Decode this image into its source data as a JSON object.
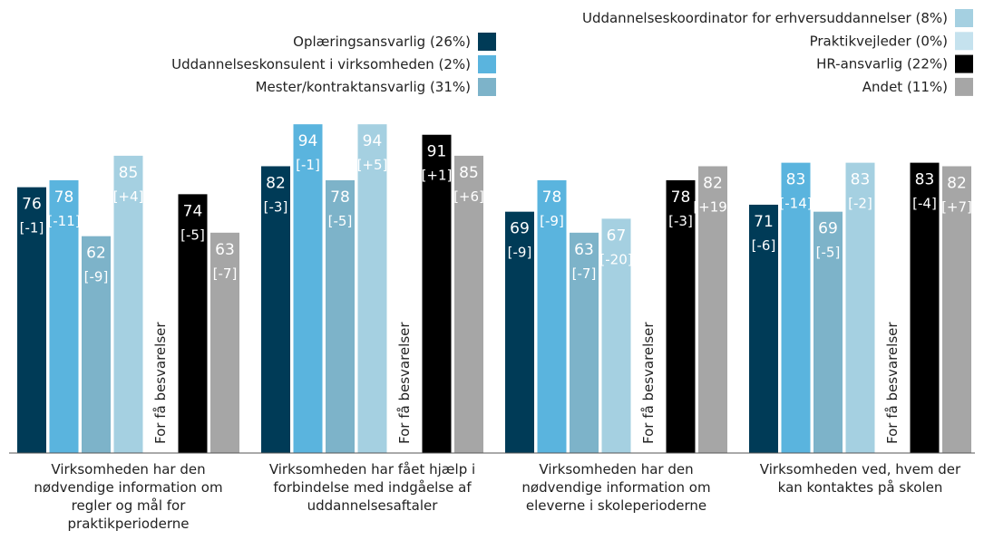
{
  "chart_data": {
    "type": "bar",
    "categories": [
      "Virksomheden har den nødvendige information om regler og mål for praktikperioderne",
      "Virksomheden har fået hjælp i forbindelse med indgåelse af uddannelsesaftaler",
      "Virksomheden har den nødvendige information om eleverne i skoleperioderne",
      "Virksomheden ved, hvem der kan kontaktes på skolen"
    ],
    "ylim": [
      0,
      100
    ],
    "note": "For få besvarelser",
    "series": [
      {
        "name": "Oplæringsansvarlig (26%)",
        "color": "#003b57",
        "values": [
          76,
          82,
          69,
          71
        ],
        "changes": [
          "[-1]",
          "[-3]",
          "[-9]",
          "[-6]"
        ]
      },
      {
        "name": "Uddannelseskonsulent i virksomheden (2%)",
        "color": "#5ab4de",
        "values": [
          78,
          94,
          78,
          83
        ],
        "changes": [
          "[-11]",
          "[-1]",
          "[-9]",
          "[-14]"
        ]
      },
      {
        "name": "Mester/kontraktansvarlig (31%)",
        "color": "#7db3c9",
        "values": [
          62,
          78,
          63,
          69
        ],
        "changes": [
          "[-9]",
          "[-5]",
          "[-7]",
          "[-5]"
        ]
      },
      {
        "name": "Uddannelseskoordinator for erhversuddannelser (8%)",
        "color": "#a5d0e1",
        "values": [
          85,
          94,
          67,
          83
        ],
        "changes": [
          "[+4]",
          "[+5]",
          "[-20]",
          "[-2]"
        ]
      },
      {
        "name": "Praktikvejleder (0%)",
        "color": "#c5e2ee",
        "values": [
          null,
          null,
          null,
          null
        ],
        "changes": [
          null,
          null,
          null,
          null
        ]
      },
      {
        "name": "HR-ansvarlig (22%)",
        "color": "#000000",
        "values": [
          74,
          91,
          78,
          83
        ],
        "changes": [
          "[-5]",
          "[+1]",
          "[-3]",
          "[-4]"
        ]
      },
      {
        "name": "Andet (11%)",
        "color": "#a6a6a6",
        "values": [
          63,
          85,
          82,
          82
        ],
        "changes": [
          "[-7]",
          "[+6]",
          "[+19]",
          "[+7]"
        ]
      }
    ]
  }
}
